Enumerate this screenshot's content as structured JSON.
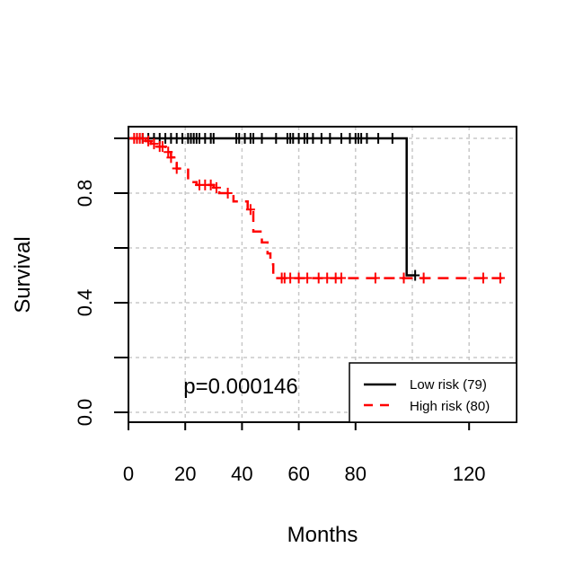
{
  "chart_data": {
    "type": "line",
    "subtype": "kaplan-meier",
    "title": "",
    "xlabel": "Months",
    "ylabel": "Survival",
    "xlim": [
      0,
      135
    ],
    "ylim": [
      0,
      1
    ],
    "x_ticks": [
      0,
      20,
      40,
      60,
      80,
      120
    ],
    "y_ticks": [
      0.0,
      0.4,
      0.8
    ],
    "y_ticks_minor": [
      0.2,
      0.6,
      1.0
    ],
    "grid": true,
    "legend_position": "bottom-right",
    "annotation": "p=0.000146",
    "series": [
      {
        "name": "Low risk (79)",
        "color": "#000000",
        "line_style": "solid",
        "steps": [
          [
            0,
            1.0
          ],
          [
            98,
            1.0
          ],
          [
            98,
            0.5
          ],
          [
            101,
            0.5
          ]
        ],
        "censor_x": [
          3,
          5,
          7,
          9,
          11,
          13,
          15,
          17,
          19,
          21,
          22,
          23,
          24,
          25,
          27,
          29,
          30,
          38,
          39,
          41,
          43,
          44,
          47,
          52,
          56,
          57,
          58,
          60,
          62,
          63,
          65,
          68,
          71,
          75,
          78,
          80,
          81,
          82,
          84,
          88,
          93,
          101
        ],
        "censor_y": [
          1,
          1,
          1,
          1,
          1,
          1,
          1,
          1,
          1,
          1,
          1,
          1,
          1,
          1,
          1,
          1,
          1,
          1,
          1,
          1,
          1,
          1,
          1,
          1,
          1,
          1,
          1,
          1,
          1,
          1,
          1,
          1,
          1,
          1,
          1,
          1,
          1,
          1,
          1,
          1,
          1,
          0.5
        ]
      },
      {
        "name": "High risk (80)",
        "color": "#ff0000",
        "line_style": "dashed",
        "steps": [
          [
            0,
            1.0
          ],
          [
            6,
            1.0
          ],
          [
            6,
            0.99
          ],
          [
            8,
            0.99
          ],
          [
            8,
            0.98
          ],
          [
            10,
            0.98
          ],
          [
            10,
            0.97
          ],
          [
            13,
            0.97
          ],
          [
            13,
            0.95
          ],
          [
            15,
            0.95
          ],
          [
            15,
            0.93
          ],
          [
            16,
            0.93
          ],
          [
            16,
            0.91
          ],
          [
            17,
            0.91
          ],
          [
            17,
            0.89
          ],
          [
            21,
            0.89
          ],
          [
            21,
            0.84
          ],
          [
            24,
            0.84
          ],
          [
            24,
            0.83
          ],
          [
            30,
            0.83
          ],
          [
            30,
            0.82
          ],
          [
            32,
            0.82
          ],
          [
            32,
            0.8
          ],
          [
            37,
            0.8
          ],
          [
            37,
            0.77
          ],
          [
            42,
            0.77
          ],
          [
            42,
            0.74
          ],
          [
            44,
            0.74
          ],
          [
            44,
            0.66
          ],
          [
            47,
            0.66
          ],
          [
            47,
            0.62
          ],
          [
            49,
            0.62
          ],
          [
            49,
            0.58
          ],
          [
            50,
            0.58
          ],
          [
            50,
            0.54
          ],
          [
            51,
            0.54
          ],
          [
            51,
            0.49
          ],
          [
            133,
            0.49
          ]
        ],
        "censor_x": [
          2,
          3,
          4,
          5,
          7,
          9,
          11,
          12,
          14,
          15,
          17,
          25,
          27,
          29,
          31,
          35,
          43,
          54,
          55,
          57,
          60,
          63,
          67,
          70,
          73,
          75,
          87,
          97,
          104,
          125,
          131
        ],
        "censor_y": [
          1,
          1,
          1,
          1,
          0.99,
          0.98,
          0.97,
          0.97,
          0.95,
          0.93,
          0.89,
          0.83,
          0.83,
          0.83,
          0.82,
          0.8,
          0.74,
          0.49,
          0.49,
          0.49,
          0.49,
          0.49,
          0.49,
          0.49,
          0.49,
          0.49,
          0.49,
          0.49,
          0.49,
          0.49,
          0.49
        ]
      }
    ]
  }
}
